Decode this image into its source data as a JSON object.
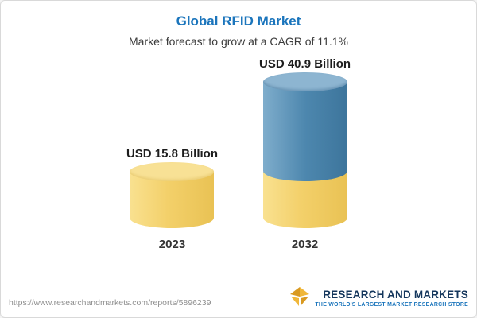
{
  "header": {
    "title": "Global RFID Market",
    "subtitle": "Market forecast to grow at a CAGR of 11.1%"
  },
  "chart_data": {
    "type": "bar",
    "title": "Global RFID Market",
    "subtitle": "Market forecast to grow at a CAGR of 11.1%",
    "unit": "USD Billion",
    "cagr": "11.1%",
    "categories": [
      "2023",
      "2032"
    ],
    "values": [
      15.8,
      40.9
    ],
    "bars": [
      {
        "category": "2023",
        "value": 15.8,
        "label": "USD 15.8 Billion",
        "color": "#f3d06a"
      },
      {
        "category": "2032",
        "value": 40.9,
        "label": "USD 40.9 Billion",
        "color_top": "#4d87ae",
        "color_base": "#f3d06a"
      }
    ],
    "legend": "none",
    "grid": false,
    "ylim": [
      0,
      45
    ]
  },
  "footer": {
    "url": "https://www.researchandmarkets.com/reports/5896239",
    "logo_text": "RESEARCH AND MARKETS",
    "logo_tagline": "THE WORLD'S LARGEST MARKET RESEARCH STORE"
  },
  "colors": {
    "title_blue": "#1b75bc",
    "bar_yellow": "#f3d06a",
    "bar_blue": "#4d87ae",
    "brand_navy": "#14365c",
    "logo_gold": "#f0b73a"
  }
}
